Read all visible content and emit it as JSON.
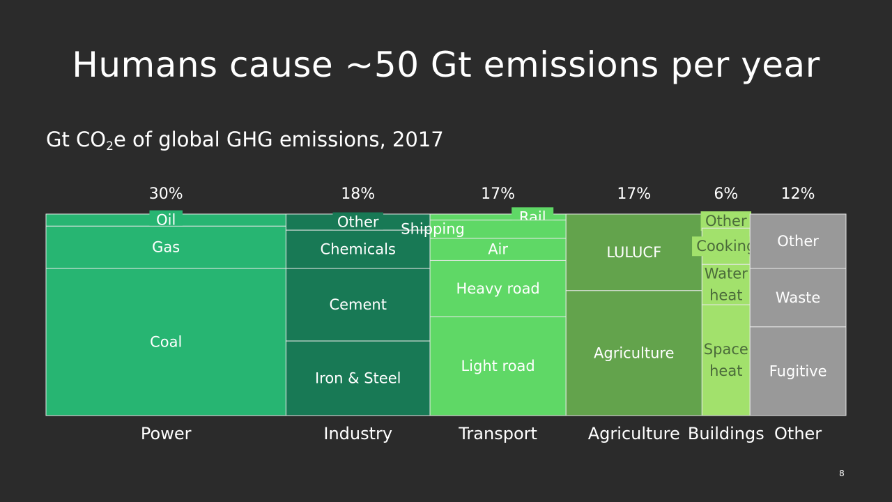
{
  "slide": {
    "title": "Humans cause ~50 Gt emissions per year",
    "subtitle_pre": "Gt CO",
    "subtitle_sub": "2",
    "subtitle_post": "e of global GHG emissions, 2017",
    "page_number": "8"
  },
  "chart_data": {
    "type": "marimekko",
    "title": "Humans cause ~50 Gt emissions per year",
    "ylabel": "Gt CO2e of global GHG emissions, 2017",
    "unit": "share of global emissions",
    "colors": {
      "Power": "#27b572",
      "Industry": "#187955",
      "Transport": "#5fd866",
      "Agriculture": "#63a34c",
      "Buildings": "#a2e16c",
      "Other": "#999999"
    },
    "categories": [
      {
        "name": "Power",
        "share_label": "30%",
        "share": 30,
        "label_color": "#ffffff",
        "segments": [
          {
            "label": "Oil",
            "fraction": 0.06,
            "pill": true
          },
          {
            "label": "Gas",
            "fraction": 0.21
          },
          {
            "label": "Coal",
            "fraction": 0.73
          }
        ]
      },
      {
        "name": "Industry",
        "share_label": "18%",
        "share": 18,
        "label_color": "#ffffff",
        "segments": [
          {
            "label": "Other",
            "fraction": 0.08,
            "pill": true
          },
          {
            "label": "Chemicals",
            "fraction": 0.19
          },
          {
            "label": "Cement",
            "fraction": 0.36
          },
          {
            "label": "Iron & Steel",
            "fraction": 0.37
          }
        ]
      },
      {
        "name": "Transport",
        "share_label": "17%",
        "share": 17,
        "label_color": "#ffffff",
        "segments": [
          {
            "label": "Rail",
            "fraction": 0.03,
            "pill": true,
            "align": "right"
          },
          {
            "label": "Shipping",
            "fraction": 0.09,
            "align": "left"
          },
          {
            "label": "Air",
            "fraction": 0.11
          },
          {
            "label": "Heavy road",
            "fraction": 0.28
          },
          {
            "label": "Light road",
            "fraction": 0.49
          }
        ]
      },
      {
        "name": "Agriculture",
        "share_label": "17%",
        "share": 17,
        "label_color": "#ffffff",
        "segments": [
          {
            "label": "LULUCF",
            "fraction": 0.38
          },
          {
            "label": "Agriculture",
            "fraction": 0.62
          }
        ]
      },
      {
        "name": "Buildings",
        "share_label": "6%",
        "share": 6,
        "label_color": "#4a6a3a",
        "segments": [
          {
            "label": "Other",
            "fraction": 0.07,
            "pill": true
          },
          {
            "label": "Cooking",
            "fraction": 0.18,
            "pill": true
          },
          {
            "label": "Water heat",
            "fraction": 0.2
          },
          {
            "label": "Space heat",
            "fraction": 0.55
          }
        ]
      },
      {
        "name": "Other",
        "share_label": "12%",
        "share": 12,
        "label_color": "#ffffff",
        "segments": [
          {
            "label": "Other",
            "fraction": 0.27
          },
          {
            "label": "Waste",
            "fraction": 0.29
          },
          {
            "label": "Fugitive",
            "fraction": 0.44
          }
        ]
      }
    ]
  }
}
